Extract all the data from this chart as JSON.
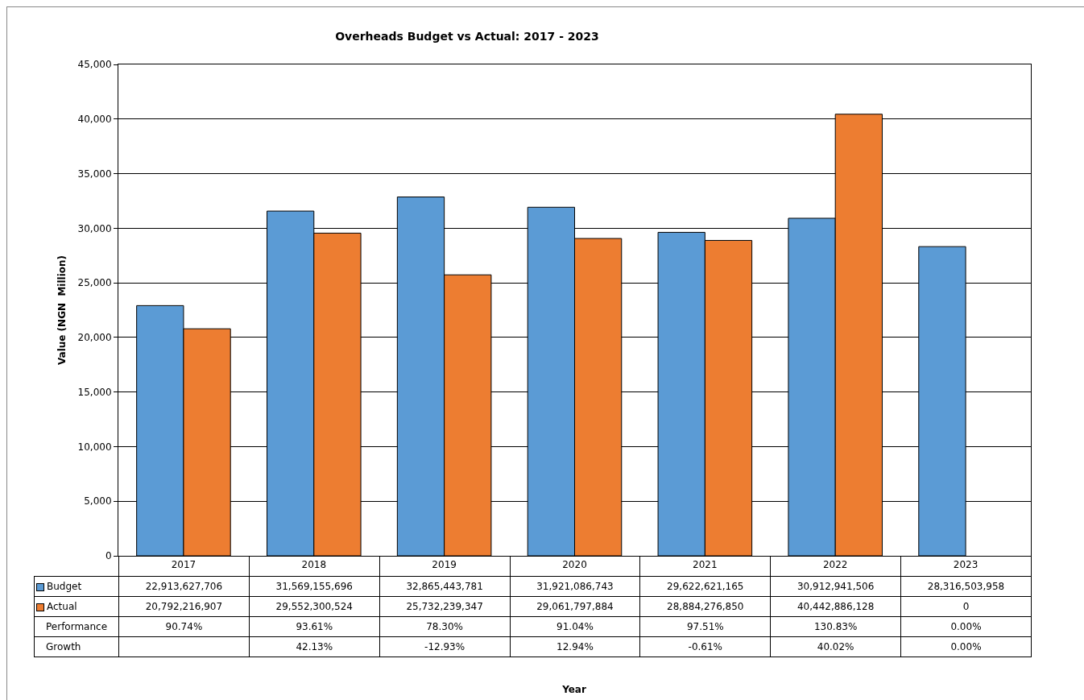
{
  "chart_data": {
    "type": "bar",
    "title": "Overheads Budget vs Actual: 2017 - 2023",
    "ylabel": "Value (NGN  Million)",
    "categories": [
      "2017",
      "2018",
      "2019",
      "2020",
      "2021",
      "2022",
      "2023"
    ],
    "series": [
      {
        "name": "Budget",
        "color": "#5b9bd5",
        "values": [
          22914,
          31569,
          32865,
          31921,
          29623,
          30913,
          28317
        ]
      },
      {
        "name": "Actual",
        "color": "#ed7d31",
        "values": [
          20792,
          29552,
          25732,
          29062,
          28884,
          40443,
          null
        ]
      }
    ],
    "ylim": [
      0,
      45000
    ],
    "yticks": [
      {
        "value": 0,
        "label": "0"
      },
      {
        "value": 5000,
        "label": "5,000"
      },
      {
        "value": 10000,
        "label": "10,000"
      },
      {
        "value": 15000,
        "label": "15,000"
      },
      {
        "value": 20000,
        "label": "20,000"
      },
      {
        "value": 25000,
        "label": "25,000"
      },
      {
        "value": 30000,
        "label": "30,000"
      },
      {
        "value": 35000,
        "label": "35,000"
      },
      {
        "value": 40000,
        "label": "40,000"
      },
      {
        "value": 45000,
        "label": "45,000"
      }
    ],
    "grid": "y",
    "legend": "bottom left",
    "annotations": [
      "Year",
      "22,913,627,706",
      "31,569,155,696",
      "32,865,443,781",
      "31,921,086,743",
      "29,622,621,165",
      "30,912,941,506",
      "28,316,503,958",
      "20,792,216,907",
      "29,552,300,524",
      "25,732,239,347",
      "29,061,797,884",
      "28,884,276,850",
      "40,442,886,128",
      "0",
      "Performance",
      "90.74%",
      "93.61%",
      "78.30%",
      "91.04%",
      "97.51%",
      "130.83%",
      "0.00%",
      "Growth",
      "42.13%",
      "-12.93%",
      "12.94%",
      "-0.61%",
      "40.02%",
      "0.00%"
    ]
  }
}
